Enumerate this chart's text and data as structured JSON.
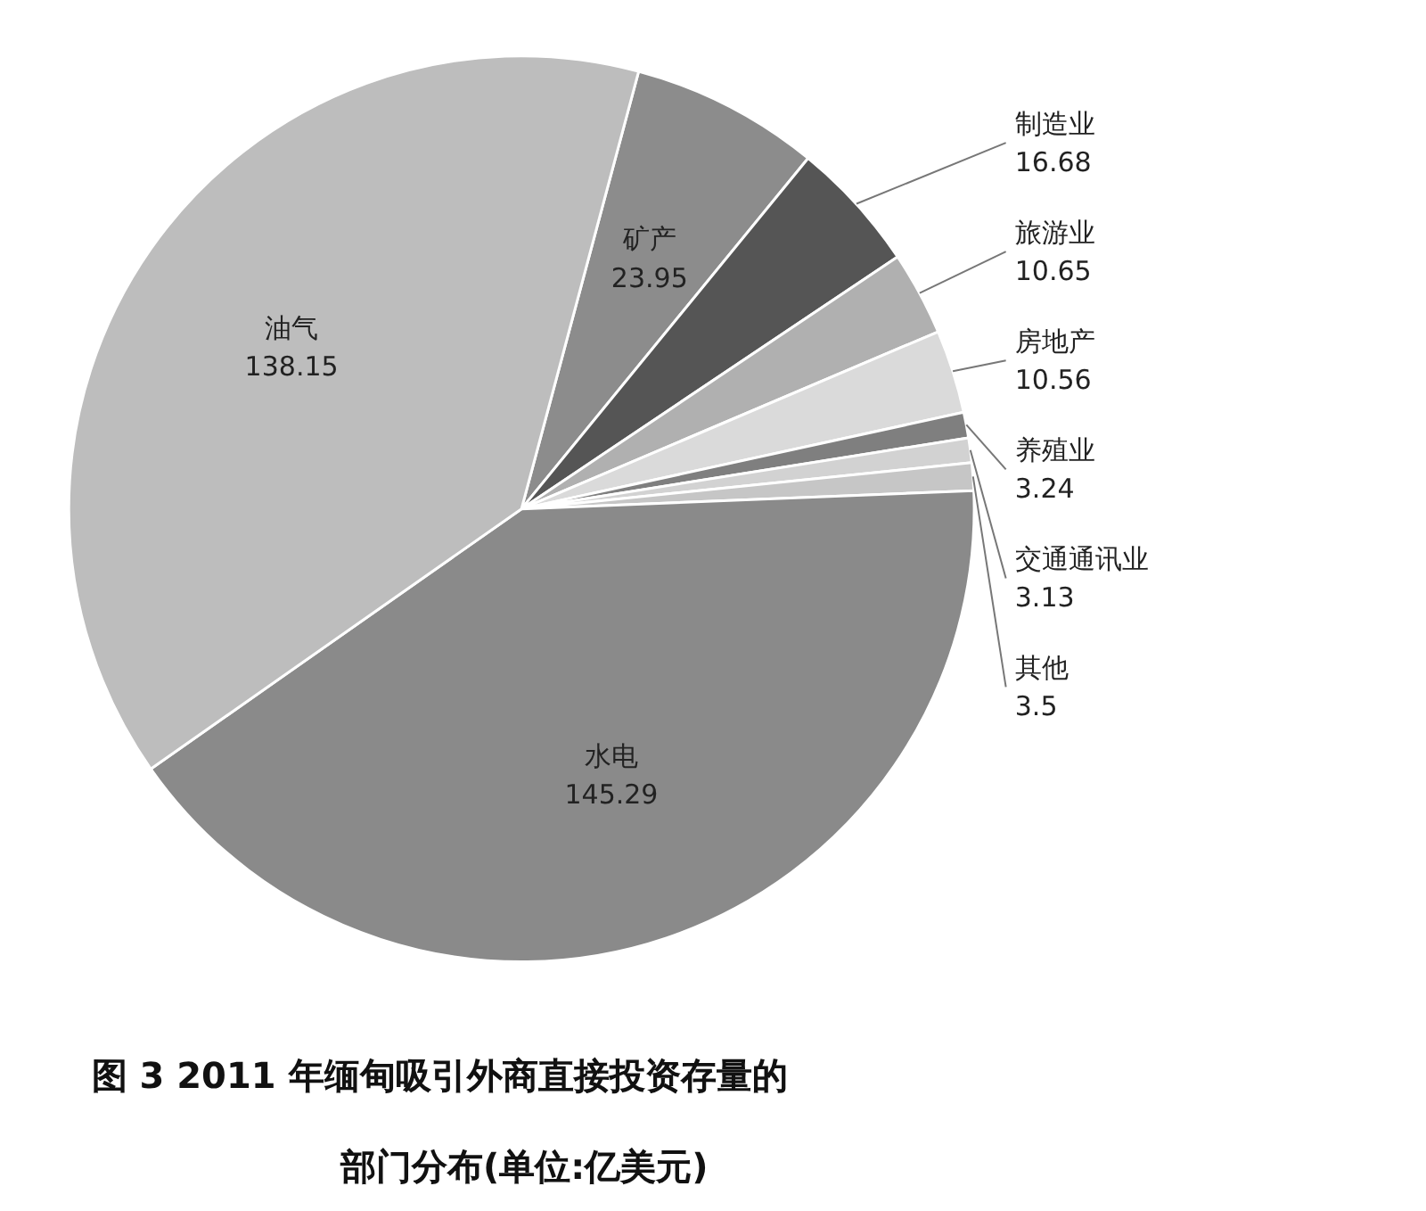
{
  "chart_data": {
    "type": "pie",
    "title": "图 3  2011 年缅甸吸引外商直接投资存量的部门分布(单位:亿美元)",
    "categories": [
      "矿产",
      "制造业",
      "旅游业",
      "房地产",
      "养殖业",
      "交通通讯业",
      "其他",
      "水电",
      "油气"
    ],
    "values": [
      23.95,
      16.68,
      10.65,
      10.56,
      3.24,
      3.13,
      3.5,
      145.29,
      138.15
    ],
    "colors": [
      "#8c8c8c",
      "#555555",
      "#b0b0b0",
      "#dadada",
      "#7f7f7f",
      "#d2d2d2",
      "#c6c6c6",
      "#8a8a8a",
      "#bdbdbd"
    ],
    "data_labels": true
  }
}
